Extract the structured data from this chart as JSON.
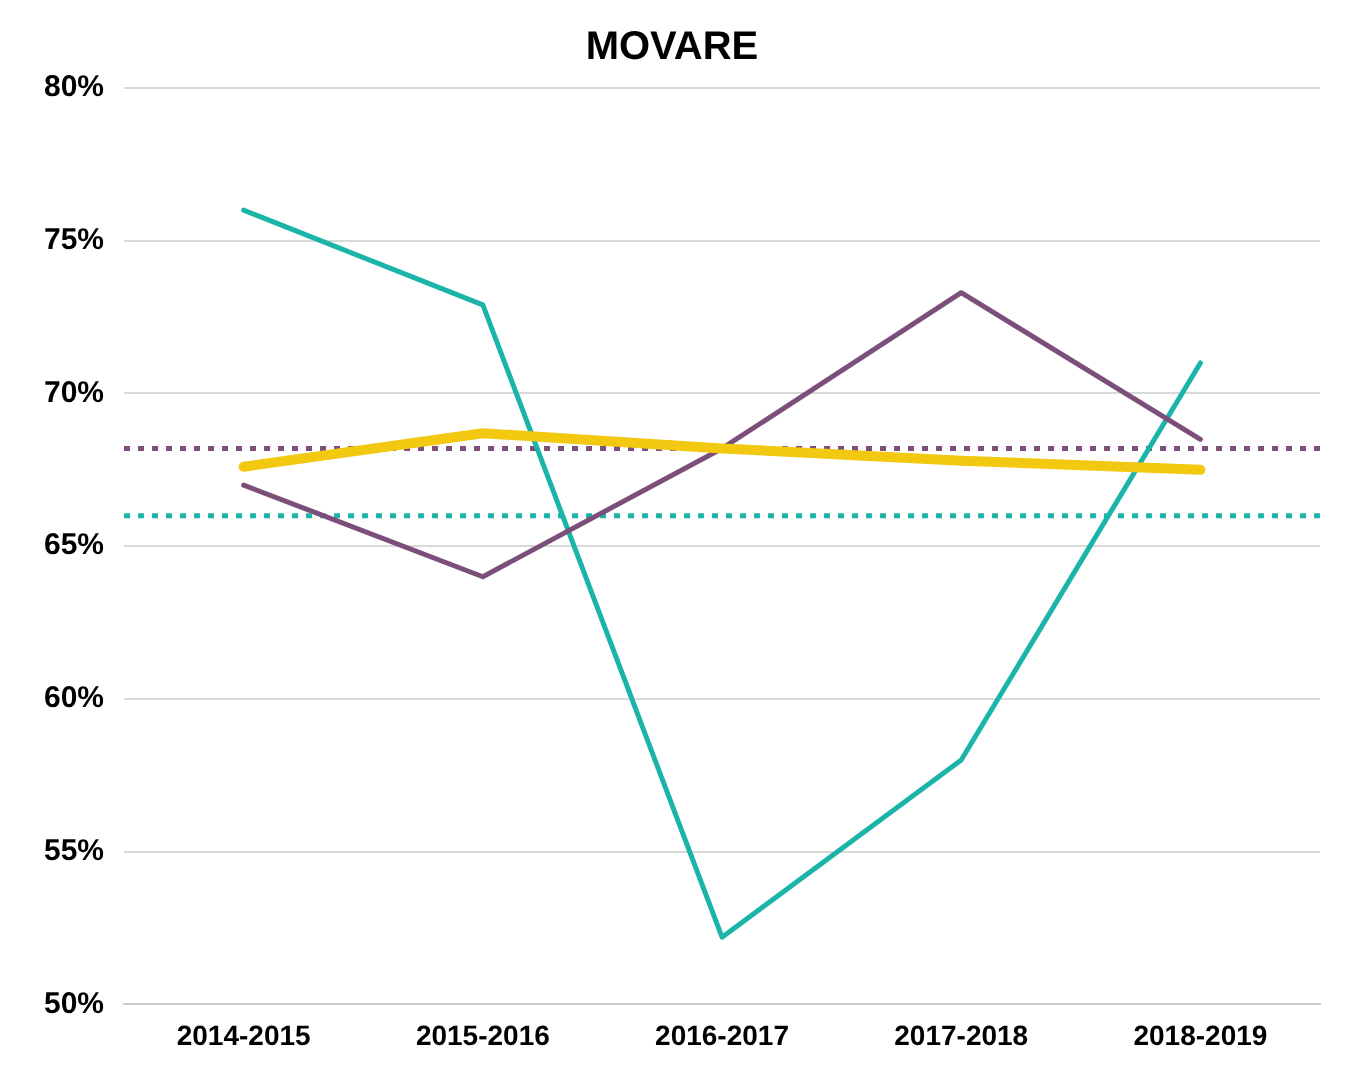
{
  "chart_data": {
    "type": "line",
    "title": "MOVARE",
    "categories": [
      "2014-2015",
      "2015-2016",
      "2016-2017",
      "2017-2018",
      "2018-2019"
    ],
    "series": [
      {
        "color": "#1ab5a8",
        "values": [
          76,
          72.9,
          52.2,
          58,
          71
        ]
      },
      {
        "color": "#7b4f7a",
        "values": [
          67,
          64,
          68.2,
          73.3,
          68.5
        ]
      },
      {
        "color": "#f2c811",
        "values": [
          67.6,
          68.7,
          68.2,
          67.8,
          67.5
        ]
      }
    ],
    "ylim": [
      50,
      80
    ],
    "yticks": [
      {
        "value": 50,
        "label": "50%"
      },
      {
        "value": 55,
        "label": "55%"
      },
      {
        "value": 60,
        "label": "60%"
      },
      {
        "value": 65,
        "label": "65%"
      },
      {
        "value": 70,
        "label": "70%"
      },
      {
        "value": 75,
        "label": "75%"
      },
      {
        "value": 80,
        "label": "80%"
      }
    ],
    "grid": "y",
    "legend": false,
    "marker": "none",
    "line_style": "solid",
    "ref_lines": [
      {
        "axis": "y",
        "value": 68.2,
        "color": "#7b4f7a",
        "line_style": "dotted"
      },
      {
        "axis": "y",
        "value": 66,
        "color": "#1ab5a8",
        "line_style": "dotted"
      }
    ]
  }
}
